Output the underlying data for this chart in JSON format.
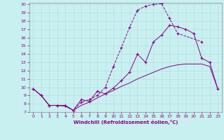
{
  "xlabel": "Windchill (Refroidissement éolien,°C)",
  "background_color": "#c8f0f0",
  "line_color": "#880088",
  "grid_color": "#b8dede",
  "xlim": [
    -0.5,
    23.5
  ],
  "ylim": [
    7,
    20.2
  ],
  "xticks": [
    0,
    1,
    2,
    3,
    4,
    5,
    6,
    7,
    8,
    9,
    10,
    11,
    12,
    13,
    14,
    15,
    16,
    17,
    18,
    19,
    20,
    21,
    22,
    23
  ],
  "yticks": [
    7,
    8,
    9,
    10,
    11,
    12,
    13,
    14,
    15,
    16,
    17,
    18,
    19,
    20
  ],
  "curves": [
    {
      "x": [
        0,
        1,
        2,
        3,
        4,
        5,
        6,
        7,
        8,
        9,
        10,
        11,
        12,
        13,
        14,
        15,
        16,
        17,
        18,
        19,
        20,
        21,
        22,
        23
      ],
      "y": [
        9.8,
        9.0,
        7.8,
        7.8,
        7.7,
        7.2,
        7.8,
        8.2,
        8.7,
        9.2,
        9.6,
        10.1,
        10.5,
        11.0,
        11.4,
        11.8,
        12.2,
        12.5,
        12.7,
        12.8,
        12.8,
        12.8,
        12.5,
        9.8
      ],
      "marker": null,
      "linestyle": "-"
    },
    {
      "x": [
        0,
        1,
        2,
        3,
        4,
        5,
        6,
        7,
        8,
        9,
        10,
        11,
        12,
        13,
        14,
        15,
        16,
        17,
        18,
        21
      ],
      "y": [
        9.8,
        9.0,
        7.8,
        7.8,
        7.8,
        7.2,
        8.2,
        8.5,
        9.0,
        10.0,
        12.5,
        14.8,
        17.2,
        19.3,
        19.8,
        20.0,
        20.1,
        18.3,
        16.5,
        15.5
      ],
      "marker": "+",
      "linestyle": "--"
    },
    {
      "x": [
        0,
        1,
        2,
        3,
        4,
        5,
        6,
        7,
        8,
        9,
        10,
        11,
        12,
        13,
        14,
        15,
        16,
        17,
        18,
        19,
        20,
        21,
        22,
        23
      ],
      "y": [
        9.8,
        9.0,
        7.8,
        7.8,
        7.8,
        7.2,
        8.5,
        8.3,
        9.5,
        9.2,
        9.9,
        10.8,
        11.8,
        14.0,
        13.0,
        15.5,
        16.3,
        17.5,
        17.3,
        17.0,
        16.5,
        13.5,
        13.0,
        9.8
      ],
      "marker": "+",
      "linestyle": "-"
    }
  ]
}
